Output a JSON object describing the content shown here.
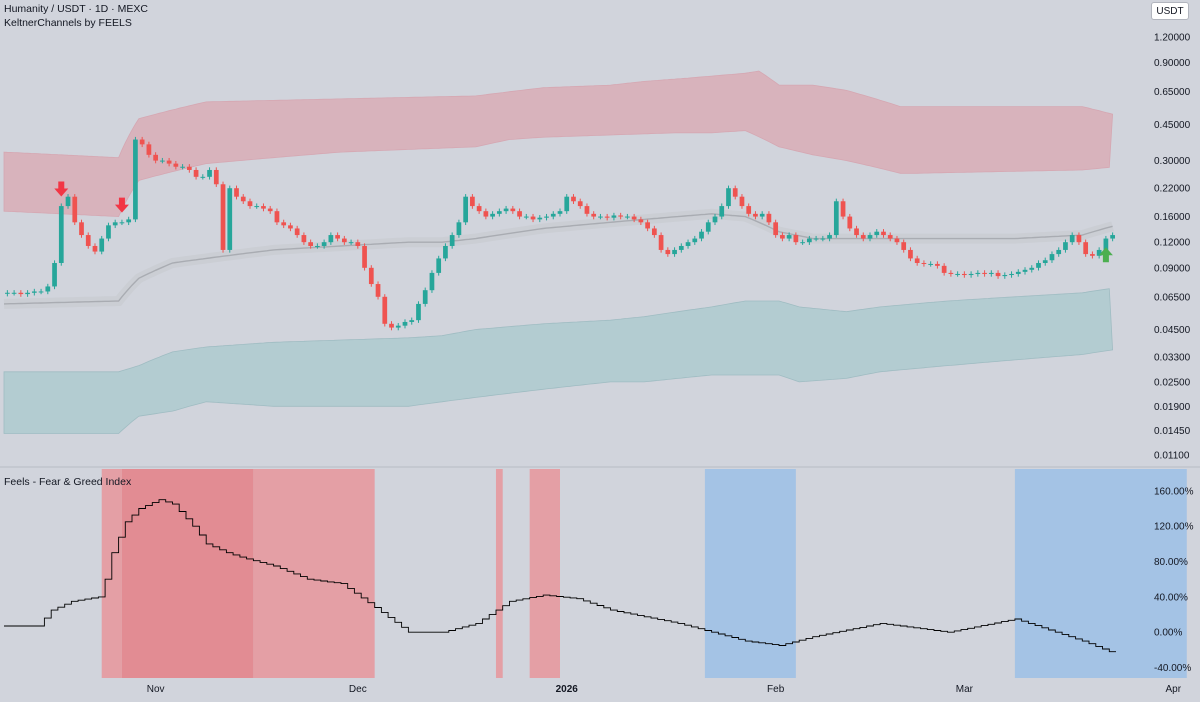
{
  "header": {
    "symbol_line": "Humanity / USDT · 1D · MEXC",
    "indicator_line": "KeltnerChannels by FEELS",
    "currency_badge": "USDT"
  },
  "lower_pane": {
    "title": "Feels - Fear & Greed Index"
  },
  "colors": {
    "background": "#d1d4dc",
    "upper_band_fill": "#d8b3bc",
    "lower_band_fill": "#b3ccd1",
    "middle_line": "#a9acb2",
    "bull_candle": "#26a69a",
    "bear_candle": "#ef5350",
    "down_arrow": "#f23645",
    "up_arrow": "#4caf50",
    "fear_zone": "#e8959b",
    "fear_zone_strong": "#e57f86",
    "greed_zone": "#9cbfe6",
    "index_line": "#000000"
  },
  "chart_data": [
    {
      "type": "candlestick",
      "title": "Humanity / USDT · 1D · MEXC",
      "yscale": "log",
      "ylim": [
        0.011,
        1.3
      ],
      "yticks": [
        "1.20000",
        "0.90000",
        "0.65000",
        "0.45000",
        "0.30000",
        "0.22000",
        "0.16000",
        "0.12000",
        "0.09000",
        "0.06500",
        "0.04500",
        "0.03300",
        "0.02500",
        "0.01900",
        "0.01450",
        "0.01100"
      ],
      "xticks": [
        {
          "label": "Nov",
          "day": 22
        },
        {
          "label": "Dec",
          "day": 52
        },
        {
          "label": "2026",
          "day": 83,
          "bold": true
        },
        {
          "label": "Feb",
          "day": 114
        },
        {
          "label": "Mar",
          "day": 142
        },
        {
          "label": "Apr",
          "day": 173
        }
      ],
      "close": [
        0.068,
        0.068,
        0.067,
        0.068,
        0.069,
        0.069,
        0.073,
        0.095,
        0.18,
        0.2,
        0.15,
        0.13,
        0.115,
        0.108,
        0.125,
        0.145,
        0.15,
        0.15,
        0.155,
        0.38,
        0.36,
        0.32,
        0.3,
        0.3,
        0.29,
        0.28,
        0.28,
        0.27,
        0.25,
        0.25,
        0.27,
        0.23,
        0.11,
        0.22,
        0.2,
        0.19,
        0.18,
        0.18,
        0.175,
        0.17,
        0.15,
        0.145,
        0.14,
        0.13,
        0.12,
        0.115,
        0.115,
        0.12,
        0.13,
        0.125,
        0.12,
        0.12,
        0.115,
        0.09,
        0.075,
        0.065,
        0.048,
        0.046,
        0.047,
        0.049,
        0.05,
        0.06,
        0.07,
        0.085,
        0.1,
        0.115,
        0.13,
        0.15,
        0.2,
        0.18,
        0.17,
        0.16,
        0.165,
        0.17,
        0.175,
        0.17,
        0.16,
        0.16,
        0.155,
        0.158,
        0.16,
        0.165,
        0.17,
        0.2,
        0.19,
        0.18,
        0.165,
        0.16,
        0.16,
        0.158,
        0.162,
        0.16,
        0.16,
        0.155,
        0.15,
        0.14,
        0.13,
        0.11,
        0.105,
        0.11,
        0.115,
        0.12,
        0.125,
        0.135,
        0.15,
        0.16,
        0.18,
        0.22,
        0.2,
        0.18,
        0.165,
        0.16,
        0.165,
        0.15,
        0.13,
        0.125,
        0.13,
        0.12,
        0.12,
        0.125,
        0.125,
        0.125,
        0.13,
        0.19,
        0.16,
        0.14,
        0.13,
        0.125,
        0.13,
        0.135,
        0.13,
        0.125,
        0.12,
        0.11,
        0.1,
        0.095,
        0.094,
        0.094,
        0.092,
        0.085,
        0.084,
        0.084,
        0.083,
        0.084,
        0.085,
        0.084,
        0.085,
        0.082,
        0.083,
        0.084,
        0.086,
        0.088,
        0.09,
        0.095,
        0.098,
        0.105,
        0.11,
        0.12,
        0.13,
        0.12,
        0.105,
        0.103,
        0.11,
        0.125,
        0.13
      ],
      "upper_band": {
        "x": [
          0,
          17,
          20,
          30,
          50,
          70,
          75,
          80,
          90,
          95,
          102,
          110,
          112,
          115,
          120,
          125,
          133,
          135,
          160,
          165,
          180
        ],
        "y": [
          0.33,
          0.31,
          0.48,
          0.58,
          0.6,
          0.62,
          0.65,
          0.68,
          0.7,
          0.73,
          0.76,
          0.8,
          0.82,
          0.7,
          0.7,
          0.66,
          0.55,
          0.55,
          0.55,
          0.5,
          0.5
        ]
      },
      "upper_band_inner": {
        "x": [
          0,
          17,
          20,
          30,
          50,
          70,
          75,
          80,
          90,
          100,
          105,
          110,
          115,
          120,
          125,
          133,
          135,
          160,
          165,
          180
        ],
        "y": [
          0.17,
          0.16,
          0.24,
          0.29,
          0.33,
          0.35,
          0.38,
          0.39,
          0.4,
          0.41,
          0.41,
          0.42,
          0.35,
          0.32,
          0.3,
          0.26,
          0.26,
          0.27,
          0.28,
          0.28
        ]
      },
      "middle_line": {
        "x": [
          0,
          17,
          20,
          25,
          30,
          40,
          50,
          60,
          65,
          70,
          80,
          90,
          100,
          105,
          110,
          115,
          120,
          130,
          140,
          150,
          160,
          165,
          170,
          180
        ],
        "y": [
          0.06,
          0.062,
          0.08,
          0.095,
          0.1,
          0.11,
          0.115,
          0.12,
          0.12,
          0.125,
          0.14,
          0.15,
          0.16,
          0.165,
          0.16,
          0.135,
          0.125,
          0.125,
          0.125,
          0.125,
          0.13,
          0.145,
          0.145,
          0.14
        ]
      },
      "lower_band": {
        "x": [
          0,
          17,
          20,
          25,
          30,
          40,
          50,
          60,
          65,
          70,
          80,
          90,
          95,
          100,
          105,
          110,
          115,
          118,
          125,
          130,
          140,
          150,
          160,
          165,
          170,
          180
        ],
        "y": [
          0.028,
          0.028,
          0.03,
          0.035,
          0.037,
          0.039,
          0.04,
          0.041,
          0.042,
          0.045,
          0.048,
          0.05,
          0.052,
          0.055,
          0.058,
          0.062,
          0.062,
          0.058,
          0.055,
          0.058,
          0.062,
          0.065,
          0.068,
          0.072,
          0.072,
          0.07
        ]
      },
      "lower_band_inner": {
        "x": [
          0,
          17,
          20,
          25,
          30,
          40,
          50,
          60,
          65,
          70,
          80,
          90,
          95,
          100,
          105,
          110,
          115,
          118,
          125,
          130,
          140,
          150,
          160,
          165,
          170,
          180
        ],
        "y": [
          0.014,
          0.014,
          0.017,
          0.018,
          0.02,
          0.019,
          0.019,
          0.019,
          0.02,
          0.021,
          0.023,
          0.025,
          0.025,
          0.026,
          0.027,
          0.027,
          0.027,
          0.025,
          0.026,
          0.028,
          0.03,
          0.032,
          0.034,
          0.036,
          0.036,
          0.035
        ]
      },
      "markers": [
        {
          "type": "down",
          "day": 8
        },
        {
          "type": "down",
          "day": 17
        },
        {
          "type": "up",
          "day": 163
        }
      ]
    },
    {
      "type": "line",
      "title": "Feels - Fear & Greed Index",
      "ylim": [
        -45,
        170
      ],
      "yticks": [
        "160.00%",
        "120.00%",
        "80.00%",
        "40.00%",
        "0.00%",
        "-40.00%"
      ],
      "x": [
        0,
        5,
        7,
        10,
        14,
        15,
        16,
        18,
        20,
        23,
        25,
        28,
        30,
        33,
        35,
        40,
        45,
        50,
        55,
        60,
        62,
        65,
        70,
        75,
        80,
        85,
        90,
        100,
        110,
        115,
        120,
        130,
        140,
        150,
        160,
        165,
        175,
        180
      ],
      "y": [
        7,
        7,
        25,
        35,
        40,
        60,
        90,
        125,
        140,
        150,
        145,
        120,
        100,
        90,
        85,
        75,
        60,
        55,
        28,
        0,
        0,
        0,
        10,
        35,
        42,
        38,
        25,
        10,
        -10,
        -15,
        -5,
        10,
        0,
        15,
        -10,
        -25,
        -20,
        0
      ],
      "shaded_regions": [
        {
          "from": 14.5,
          "to": 17.5,
          "zone": "fear"
        },
        {
          "from": 17.5,
          "to": 37,
          "zone": "fear_strong"
        },
        {
          "from": 37,
          "to": 55,
          "zone": "fear"
        },
        {
          "from": 73,
          "to": 74,
          "zone": "fear"
        },
        {
          "from": 78,
          "to": 82.5,
          "zone": "fear"
        },
        {
          "from": 104,
          "to": 117.5,
          "zone": "greed"
        },
        {
          "from": 150,
          "to": 175.5,
          "zone": "greed"
        }
      ]
    }
  ]
}
